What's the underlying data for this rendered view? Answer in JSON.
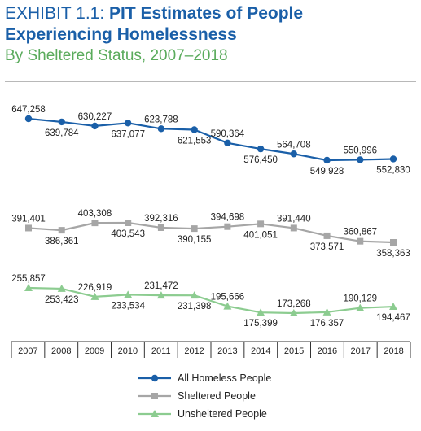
{
  "title": {
    "prefix": "EXHIBIT 1.1: ",
    "line1_bold": "PIT Estimates of People",
    "line2": "Experiencing Homelessness",
    "subtitle": "By Sheltered Status, 2007–2018"
  },
  "colors": {
    "title": "#1a5fa8",
    "subtitle": "#5aab5c",
    "all": "#1a5fa8",
    "sheltered": "#a6a6a6",
    "unsheltered": "#8ccc90"
  },
  "chart_data": {
    "type": "line",
    "title": "PIT Estimates of People Experiencing Homelessness",
    "subtitle": "By Sheltered Status, 2007–2018",
    "x": [
      "2007",
      "2008",
      "2009",
      "2010",
      "2011",
      "2012",
      "2013",
      "2014",
      "2015",
      "2016",
      "2017",
      "2018"
    ],
    "series": [
      {
        "name": "All Homeless People",
        "marker": "circle",
        "color": "#1a5fa8",
        "values": [
          647258,
          639784,
          630227,
          637077,
          623788,
          621553,
          590364,
          576450,
          564708,
          549928,
          550996,
          552830
        ],
        "labels": [
          "647,258",
          "639,784",
          "630,227",
          "637,077",
          "623,788",
          "621,553",
          "590,364",
          "576,450",
          "564,708",
          "549,928",
          "550,996",
          "552,830"
        ],
        "label_pos": [
          "above",
          "below",
          "above",
          "below",
          "above",
          "below",
          "above",
          "below",
          "above",
          "below",
          "above",
          "below"
        ]
      },
      {
        "name": "Sheltered People",
        "marker": "square",
        "color": "#a6a6a6",
        "values": [
          391401,
          386361,
          403308,
          403543,
          392316,
          390155,
          394698,
          401051,
          391440,
          373571,
          360867,
          358363
        ],
        "labels": [
          "391,401",
          "386,361",
          "403,308",
          "403,543",
          "392,316",
          "390,155",
          "394,698",
          "401,051",
          "391,440",
          "373,571",
          "360,867",
          "358,363"
        ],
        "label_pos": [
          "above",
          "below",
          "above",
          "below",
          "above",
          "below",
          "above",
          "below",
          "above",
          "below",
          "above",
          "below"
        ]
      },
      {
        "name": "Unsheltered People",
        "marker": "triangle",
        "color": "#8ccc90",
        "values": [
          255857,
          253423,
          226919,
          233534,
          231472,
          231398,
          195666,
          175399,
          173268,
          176357,
          190129,
          194467
        ],
        "labels": [
          "255,857",
          "253,423",
          "226,919",
          "233,534",
          "231,472",
          "231,398",
          "195,666",
          "175,399",
          "173,268",
          "176,357",
          "190,129",
          "194,467"
        ],
        "label_pos": [
          "above",
          "below",
          "above",
          "below",
          "above",
          "below",
          "above",
          "below",
          "above",
          "below",
          "above",
          "below"
        ]
      }
    ],
    "legend_position": "bottom-center",
    "grid": false
  }
}
